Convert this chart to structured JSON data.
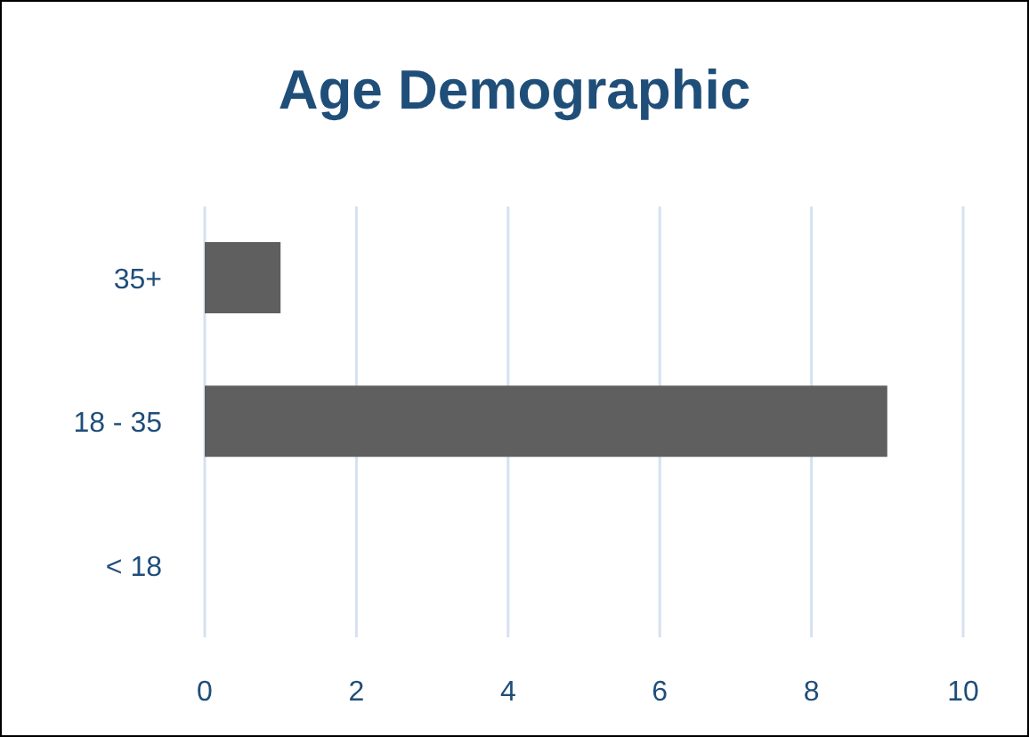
{
  "chart_data": {
    "type": "bar",
    "title": "Age Demographic",
    "orientation": "horizontal",
    "categories": [
      "35+",
      "18 - 35",
      "< 18"
    ],
    "values": [
      1,
      9,
      0
    ],
    "color": "#5f5f5f",
    "xlim": [
      0,
      10
    ],
    "xticks": [
      0,
      2,
      4,
      6,
      8,
      10
    ],
    "grid": "x"
  }
}
